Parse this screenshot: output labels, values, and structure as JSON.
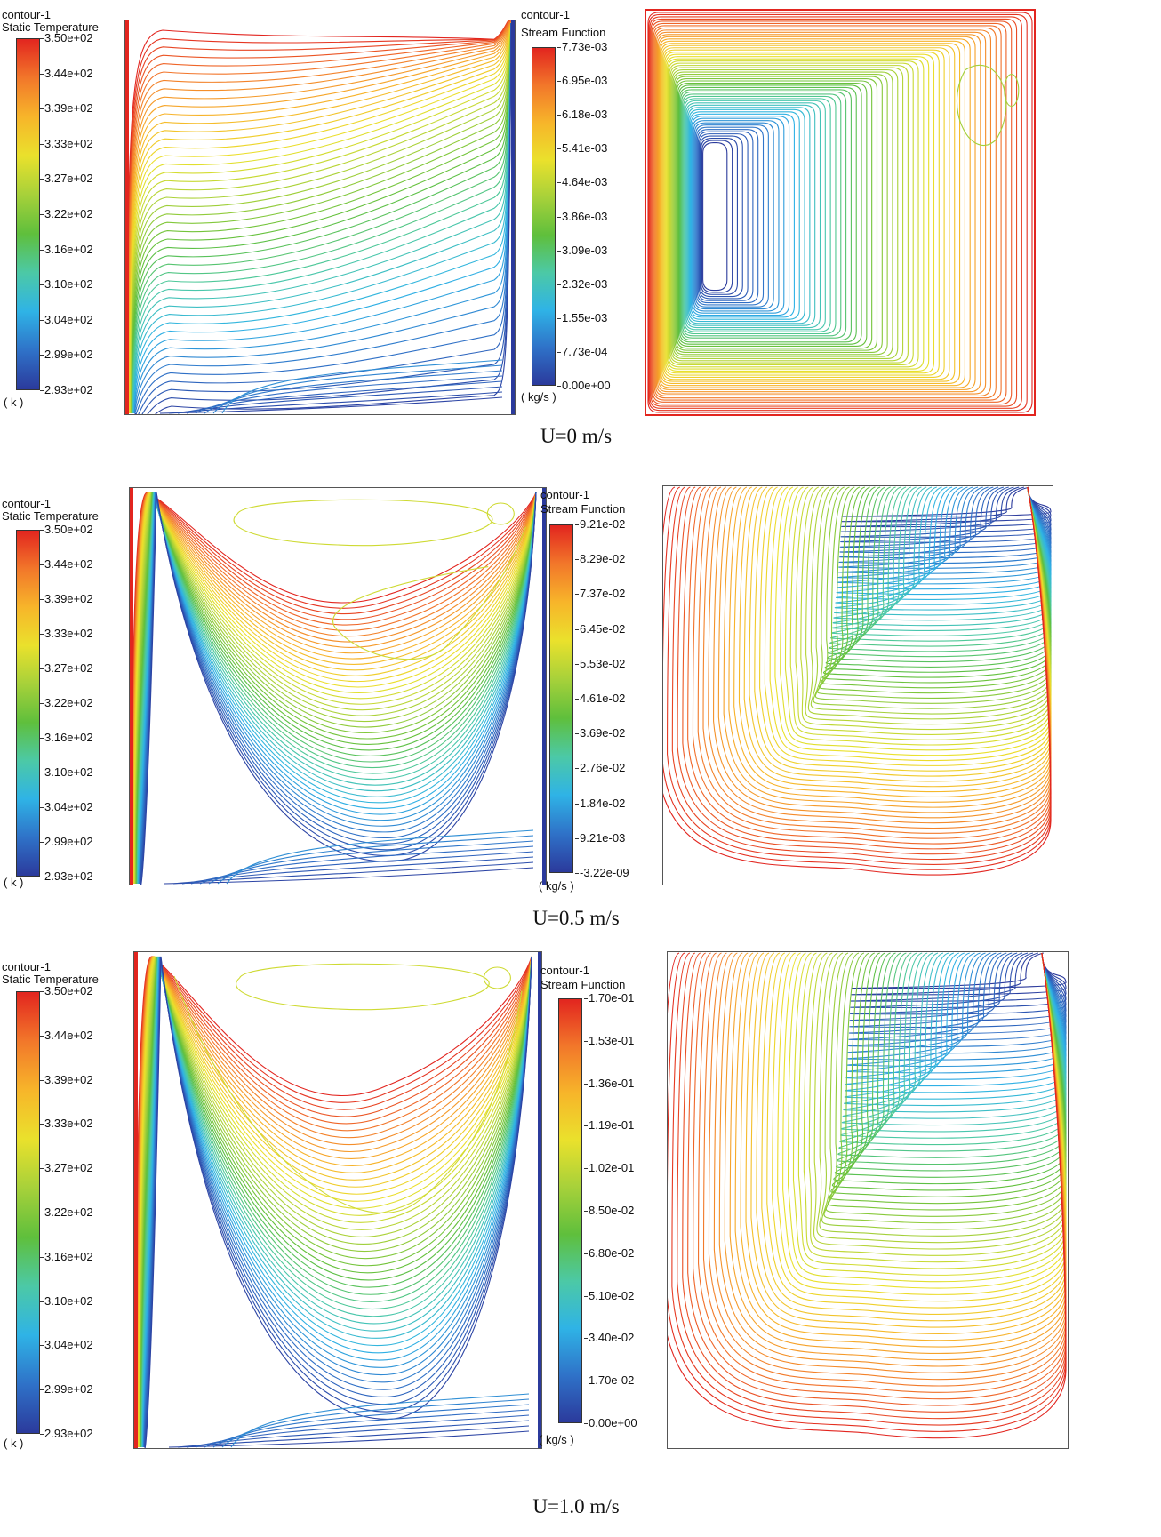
{
  "chart_data": [
    {
      "type": "contour",
      "id": "temp-u0",
      "title": "contour-1",
      "variable": "Static Temperature",
      "unit": "( k )",
      "legend_ticks": [
        "3.50e+02",
        "3.44e+02",
        "3.39e+02",
        "3.33e+02",
        "3.27e+02",
        "3.22e+02",
        "3.16e+02",
        "3.10e+02",
        "3.04e+02",
        "2.99e+02",
        "2.93e+02"
      ],
      "range": [
        293,
        350
      ],
      "velocity_U": 0
    },
    {
      "type": "contour",
      "id": "stream-u0",
      "title": "contour-1",
      "variable": "Stream Function",
      "unit": "( kg/s )",
      "legend_ticks": [
        "7.73e-03",
        "6.95e-03",
        "6.18e-03",
        "5.41e-03",
        "4.64e-03",
        "3.86e-03",
        "3.09e-03",
        "2.32e-03",
        "1.55e-03",
        "7.73e-04",
        "0.00e+00"
      ],
      "range": [
        0,
        0.00773
      ],
      "velocity_U": 0
    },
    {
      "type": "contour",
      "id": "temp-u05",
      "title": "contour-1",
      "variable": "Static Temperature",
      "unit": "( k )",
      "legend_ticks": [
        "3.50e+02",
        "3.44e+02",
        "3.39e+02",
        "3.33e+02",
        "3.27e+02",
        "3.22e+02",
        "3.16e+02",
        "3.10e+02",
        "3.04e+02",
        "2.99e+02",
        "2.93e+02"
      ],
      "range": [
        293,
        350
      ],
      "velocity_U": 0.5
    },
    {
      "type": "contour",
      "id": "stream-u05",
      "title": "contour-1",
      "variable": "Stream Function",
      "unit": "( kg/s )",
      "legend_ticks": [
        "9.21e-02",
        "8.29e-02",
        "7.37e-02",
        "6.45e-02",
        "5.53e-02",
        "4.61e-02",
        "3.69e-02",
        "2.76e-02",
        "1.84e-02",
        "9.21e-03",
        "-3.22e-09"
      ],
      "range": [
        -3.22e-09,
        0.0921
      ],
      "velocity_U": 0.5
    },
    {
      "type": "contour",
      "id": "temp-u10",
      "title": "contour-1",
      "variable": "Static Temperature",
      "unit": "( k )",
      "legend_ticks": [
        "3.50e+02",
        "3.44e+02",
        "3.39e+02",
        "3.33e+02",
        "3.27e+02",
        "3.22e+02",
        "3.16e+02",
        "3.10e+02",
        "3.04e+02",
        "2.99e+02",
        "2.93e+02"
      ],
      "range": [
        293,
        350
      ],
      "velocity_U": 1.0
    },
    {
      "type": "contour",
      "id": "stream-u10",
      "title": "contour-1",
      "variable": "Stream Function",
      "unit": "( kg/s )",
      "legend_ticks": [
        "1.70e-01",
        "1.53e-01",
        "1.36e-01",
        "1.19e-01",
        "1.02e-01",
        "8.50e-02",
        "6.80e-02",
        "5.10e-02",
        "3.40e-02",
        "1.70e-02",
        "0.00e+00"
      ],
      "range": [
        0,
        0.17
      ],
      "velocity_U": 1.0
    }
  ],
  "captions": [
    "U=0 m/s",
    "U=0.5 m/s",
    "U=1.0 m/s"
  ],
  "colormap": [
    "#2b3a9c",
    "#2f72c8",
    "#2fb3e6",
    "#4cc9a6",
    "#5fbf3c",
    "#a7d13a",
    "#eae12c",
    "#f7b52a",
    "#f2772a",
    "#e2251f"
  ]
}
